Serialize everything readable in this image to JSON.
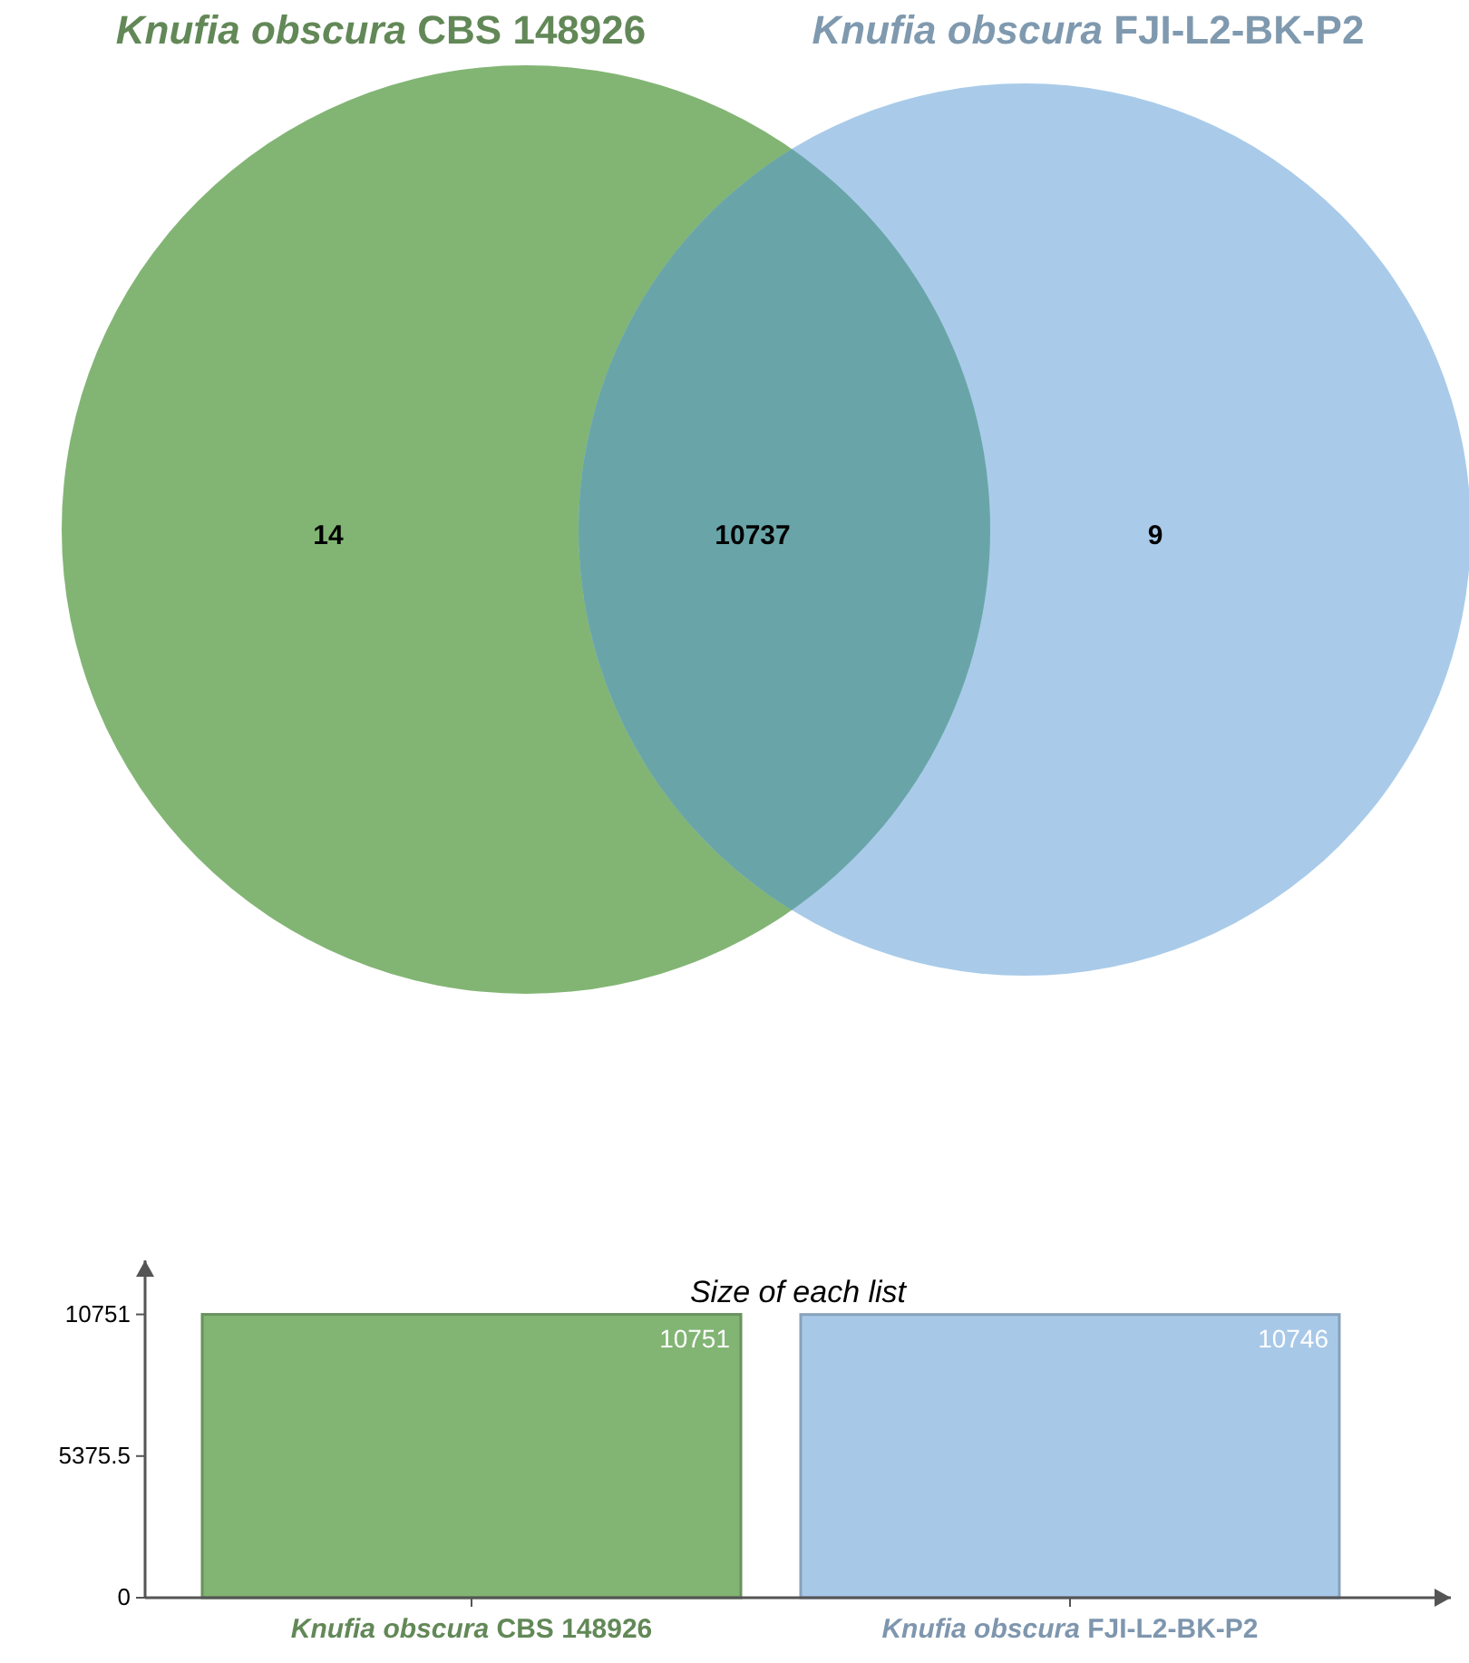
{
  "chart_data": [
    {
      "type": "other",
      "categories": [
        null,
        null,
        null
      ],
      "values": [
        14,
        10737,
        9
      ],
      "colors": [
        "#82b574",
        "#69a5a8",
        "#a9cbe9"
      ],
      "data_labels": true,
      "annotations": [
        "Knufia obscura CBS 148926",
        "Knufia obscura FJI-L2-BK-P2"
      ]
    },
    {
      "type": "bar",
      "title": "Size of each list",
      "categories": [
        "Knufia obscura CBS 148926",
        "Knufia obscura FJI-L2-BK-P2"
      ],
      "values": [
        10751,
        10746
      ],
      "colors": [
        "#82b574",
        "#a8c8e8"
      ],
      "ylim": [
        0,
        12800
      ],
      "yticks": [
        0,
        5375.5,
        10751
      ],
      "data_labels": true
    }
  ]
}
